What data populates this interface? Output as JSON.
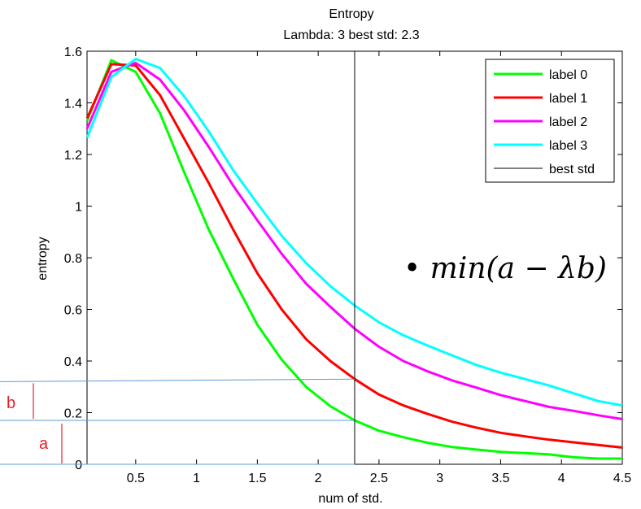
{
  "chart_data": {
    "type": "line",
    "title": "Entropy",
    "subtitle": "Lambda: 3 best std: 2.3",
    "xlabel": "num of std.",
    "ylabel": "entropy",
    "xlim": [
      0.1,
      4.5
    ],
    "ylim": [
      0,
      1.6
    ],
    "xticks": [
      0.5,
      1,
      1.5,
      2,
      2.5,
      3,
      3.5,
      4,
      4.5
    ],
    "yticks": [
      0,
      0.2,
      0.4,
      0.6,
      0.8,
      1,
      1.2,
      1.4,
      1.6
    ],
    "xtick_labels": [
      "0.5",
      "1",
      "1.5",
      "2",
      "2.5",
      "3",
      "3.5",
      "4",
      "4.5"
    ],
    "ytick_labels": [
      "0",
      "0.2",
      "0.4",
      "0.6",
      "0.8",
      "1",
      "1.2",
      "1.4",
      "1.6"
    ],
    "grid": false,
    "legend_position": "top-right",
    "x": [
      0.1,
      0.3,
      0.5,
      0.7,
      0.9,
      1.1,
      1.3,
      1.5,
      1.7,
      1.9,
      2.1,
      2.3,
      2.5,
      2.7,
      2.9,
      3.1,
      3.3,
      3.5,
      3.7,
      3.9,
      4.1,
      4.3,
      4.5
    ],
    "series": [
      {
        "name": "label 0",
        "color": "#00ff00",
        "values": [
          1.33,
          1.565,
          1.52,
          1.36,
          1.13,
          0.91,
          0.72,
          0.54,
          0.405,
          0.3,
          0.225,
          0.17,
          0.13,
          0.105,
          0.083,
          0.067,
          0.057,
          0.048,
          0.043,
          0.038,
          0.027,
          0.022,
          0.022
        ]
      },
      {
        "name": "label 1",
        "color": "#ff0000",
        "values": [
          1.34,
          1.55,
          1.545,
          1.43,
          1.26,
          1.09,
          0.91,
          0.74,
          0.6,
          0.485,
          0.4,
          0.33,
          0.27,
          0.228,
          0.195,
          0.165,
          0.142,
          0.122,
          0.108,
          0.095,
          0.085,
          0.075,
          0.065
        ]
      },
      {
        "name": "label 2",
        "color": "#ff00ff",
        "values": [
          1.3,
          1.52,
          1.555,
          1.49,
          1.37,
          1.23,
          1.08,
          0.945,
          0.815,
          0.7,
          0.61,
          0.525,
          0.455,
          0.4,
          0.36,
          0.325,
          0.297,
          0.268,
          0.245,
          0.222,
          0.207,
          0.19,
          0.175
        ]
      },
      {
        "name": "label 3",
        "color": "#00ffff",
        "values": [
          1.265,
          1.5,
          1.57,
          1.535,
          1.425,
          1.29,
          1.14,
          1.01,
          0.885,
          0.78,
          0.69,
          0.615,
          0.55,
          0.5,
          0.46,
          0.422,
          0.385,
          0.355,
          0.33,
          0.305,
          0.275,
          0.245,
          0.228
        ]
      }
    ],
    "best_std": {
      "name": "best std",
      "value": 2.3,
      "color": "#000000"
    },
    "annotations": {
      "formula": "• min(a − λb)",
      "label_a": "a",
      "label_b": "b",
      "ref_lines": [
        {
          "y_left": 0.0,
          "y_right": 0.0
        },
        {
          "y_left": 0.17,
          "y_right": 0.17
        },
        {
          "y_left": 0.32,
          "y_right": 0.33
        }
      ],
      "ref_line_color": "#5b9bd5",
      "bracket_color": "#e8202a"
    }
  }
}
